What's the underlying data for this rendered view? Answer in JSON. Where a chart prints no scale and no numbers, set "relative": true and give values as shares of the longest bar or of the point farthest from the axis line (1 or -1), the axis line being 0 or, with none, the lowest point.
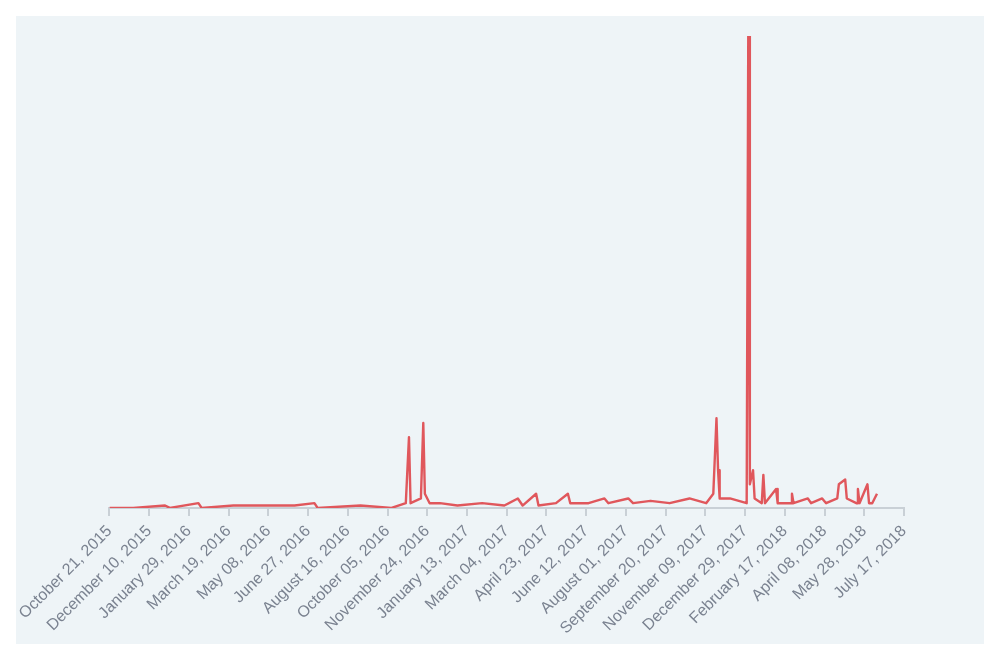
{
  "chart_data": {
    "type": "line",
    "relative": true,
    "marker": "none",
    "line_style": "solid",
    "grid": false,
    "legend": false,
    "xlim": [
      "2015-10-21",
      "2018-07-17"
    ],
    "xticks": [
      {
        "value": "2015-10-21",
        "label": "October 21, 2015"
      },
      {
        "value": "2015-12-10",
        "label": "December 10, 2015"
      },
      {
        "value": "2016-01-29",
        "label": "January 29, 2016"
      },
      {
        "value": "2016-03-19",
        "label": "March 19, 2016"
      },
      {
        "value": "2016-05-08",
        "label": "May 08, 2016"
      },
      {
        "value": "2016-06-27",
        "label": "June 27, 2016"
      },
      {
        "value": "2016-08-16",
        "label": "August 16, 2016"
      },
      {
        "value": "2016-10-05",
        "label": "October 05, 2016"
      },
      {
        "value": "2016-11-24",
        "label": "November 24, 2016"
      },
      {
        "value": "2017-01-13",
        "label": "January 13, 2017"
      },
      {
        "value": "2017-03-04",
        "label": "March 04, 2017"
      },
      {
        "value": "2017-04-23",
        "label": "April 23, 2017"
      },
      {
        "value": "2017-06-12",
        "label": "June 12, 2017"
      },
      {
        "value": "2017-08-01",
        "label": "August 01, 2017"
      },
      {
        "value": "2017-09-20",
        "label": "September 20, 2017"
      },
      {
        "value": "2017-11-09",
        "label": "November 09, 2017"
      },
      {
        "value": "2017-12-29",
        "label": "December 29, 2017"
      },
      {
        "value": "2018-02-17",
        "label": "February 17, 2018"
      },
      {
        "value": "2018-04-08",
        "label": "April 08, 2018"
      },
      {
        "value": "2018-05-28",
        "label": "May 28, 2018"
      },
      {
        "value": "2018-07-17",
        "label": "July 17, 2018"
      }
    ],
    "x": [
      "2015-10-21",
      "2015-11-20",
      "2015-12-30",
      "2016-01-05",
      "2016-02-10",
      "2016-02-14",
      "2016-03-25",
      "2016-05-01",
      "2016-06-10",
      "2016-07-05",
      "2016-07-09",
      "2016-09-01",
      "2016-10-10",
      "2016-10-28",
      "2016-11-01",
      "2016-11-03",
      "2016-11-16",
      "2016-11-19",
      "2016-11-21",
      "2016-11-27",
      "2016-12-10",
      "2017-01-01",
      "2017-02-01",
      "2017-03-01",
      "2017-03-18",
      "2017-03-24",
      "2017-04-10",
      "2017-04-13",
      "2017-05-05",
      "2017-05-20",
      "2017-05-23",
      "2017-06-15",
      "2017-07-05",
      "2017-07-10",
      "2017-08-04",
      "2017-08-10",
      "2017-09-01",
      "2017-09-25",
      "2017-10-20",
      "2017-11-10",
      "2017-11-19",
      "2017-11-23",
      "2017-11-25",
      "2017-11-27",
      "2017-12-10",
      "2017-12-31",
      "2018-01-02",
      "2018-01-04",
      "2018-01-08",
      "2018-01-10",
      "2018-01-19",
      "2018-01-21",
      "2018-01-23",
      "2018-02-06",
      "2018-02-08",
      "2018-02-24",
      "2018-02-26",
      "2018-02-28",
      "2018-03-18",
      "2018-03-22",
      "2018-04-05",
      "2018-04-10",
      "2018-04-24",
      "2018-04-26",
      "2018-05-04",
      "2018-05-06",
      "2018-05-18",
      "2018-05-20",
      "2018-05-22",
      "2018-06-01",
      "2018-06-03",
      "2018-06-07",
      "2018-06-13"
    ],
    "series": [
      {
        "color": "#e0575c",
        "values": [
          0,
          0,
          0.005,
          0,
          0.01,
          0,
          0.005,
          0.005,
          0.005,
          0.01,
          0,
          0.005,
          0,
          0.01,
          0.15,
          0.01,
          0.02,
          0.18,
          0.03,
          0.01,
          0.01,
          0.005,
          0.01,
          0.005,
          0.02,
          0.005,
          0.03,
          0.005,
          0.01,
          0.03,
          0.01,
          0.01,
          0.02,
          0.01,
          0.02,
          0.01,
          0.015,
          0.01,
          0.02,
          0.01,
          0.03,
          0.19,
          0.08,
          0.02,
          0.02,
          0.01,
          1,
          0.05,
          0.08,
          0.02,
          0.01,
          0.07,
          0.01,
          0.04,
          0.01,
          0.01,
          0.03,
          0.01,
          0.02,
          0.01,
          0.02,
          0.01,
          0.02,
          0.05,
          0.06,
          0.02,
          0.01,
          0.04,
          0.01,
          0.05,
          0.01,
          0.01,
          0.03
        ]
      }
    ]
  }
}
